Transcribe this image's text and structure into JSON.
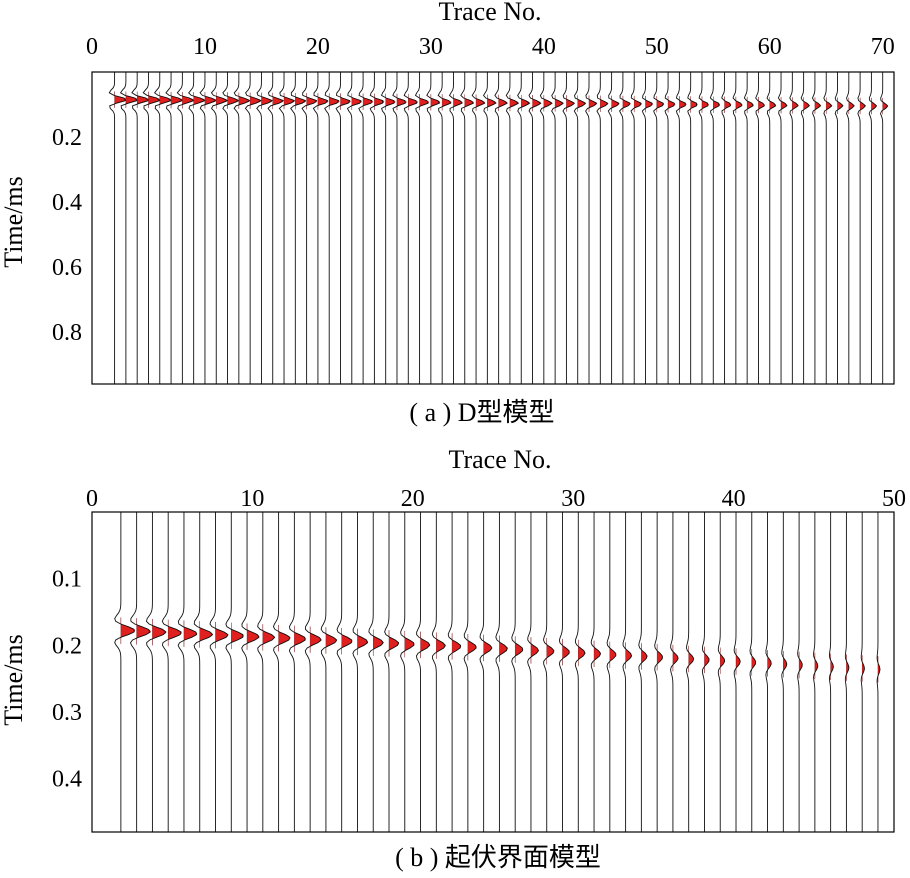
{
  "chart_data": [
    {
      "type": "seismic-wiggle",
      "caption": "( a ) D型模型",
      "xlabel": "Trace No.",
      "ylabel": "Time/ms",
      "x_ticks": [
        0,
        10,
        20,
        30,
        40,
        50,
        60,
        70
      ],
      "y_ticks": [
        "0.2",
        "0.4",
        "0.6",
        "0.8"
      ],
      "xlim": [
        0,
        71
      ],
      "ylim": [
        0,
        0.96
      ],
      "trace_count": 69,
      "first_trace": 2,
      "arrival_time_start": 0.085,
      "arrival_time_end": 0.105,
      "amplitude_start": 12,
      "amplitude_end": 5,
      "fill_color": "#e01f1f"
    },
    {
      "type": "seismic-wiggle",
      "caption": "( b ) 起伏界面模型",
      "xlabel": "Trace No.",
      "ylabel": "Time/ms",
      "x_ticks": [
        0,
        10,
        20,
        30,
        40,
        50
      ],
      "y_ticks": [
        "0.1",
        "0.2",
        "0.3",
        "0.4"
      ],
      "xlim": [
        0,
        50
      ],
      "ylim": [
        0,
        0.48
      ],
      "trace_count": 49,
      "first_trace": 1.8,
      "arrival_time_start": 0.178,
      "arrival_time_mid": 0.205,
      "arrival_time_end": 0.236,
      "amplitude_start": 14,
      "amplitude_end": 2,
      "fill_color": "#e01f1f"
    }
  ]
}
